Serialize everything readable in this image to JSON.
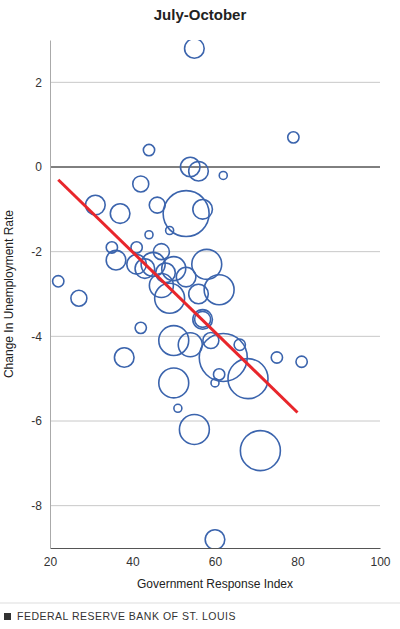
{
  "chart_data": {
    "type": "scatter",
    "title": "July-October",
    "x_label": "Government Response Index",
    "y_label": "Change In Unemployment Rate",
    "source": "FEDERAL RESERVE BANK OF ST. LOUIS",
    "xlim": [
      20,
      100
    ],
    "xticks": [
      20,
      40,
      60,
      80,
      100
    ],
    "ylim": [
      -9,
      3
    ],
    "yticks": [
      -8,
      -6,
      -4,
      -2,
      0,
      2
    ],
    "grid": true,
    "series": [
      {
        "type": "scatter",
        "marker": "circle",
        "color": "#3b64ad",
        "x": [
          22,
          27,
          31,
          35,
          36,
          37,
          38,
          41,
          41,
          42,
          42,
          43,
          44,
          44,
          45,
          46,
          47,
          47,
          48,
          49,
          49,
          50,
          50,
          50,
          51,
          53,
          53,
          54,
          54,
          55,
          55,
          56,
          56,
          57,
          57,
          57,
          58,
          59,
          60,
          60,
          61,
          61,
          62,
          62,
          66,
          68,
          71,
          75,
          79,
          81
        ],
        "values": [
          -2.7,
          -3.1,
          -0.9,
          -1.9,
          -2.2,
          -1.1,
          -4.5,
          -2.3,
          -1.9,
          -0.4,
          -3.8,
          -2.4,
          0.4,
          -1.6,
          -2.3,
          -0.9,
          -2.0,
          -2.8,
          -2.5,
          -3.1,
          -1.5,
          -2.4,
          -4.1,
          -5.1,
          -5.7,
          -2.6,
          -1.1,
          0.0,
          -4.2,
          2.8,
          -6.2,
          -0.1,
          -3.0,
          -1.0,
          -3.6,
          -3.6,
          -2.3,
          -4.1,
          -5.1,
          -8.8,
          -2.9,
          -4.9,
          -0.2,
          -4.5,
          -4.2,
          -5.0,
          -6.7,
          -4.5,
          0.7,
          -4.6
        ],
        "sizes": [
          2,
          4,
          6,
          2,
          6,
          6,
          6,
          6,
          2,
          4,
          2,
          6,
          2,
          1,
          9,
          4,
          4,
          9,
          6,
          14,
          1,
          9,
          14,
          14,
          1,
          6,
          33,
          6,
          9,
          6,
          14,
          6,
          6,
          6,
          4,
          6,
          14,
          4,
          1,
          6,
          14,
          2,
          1,
          36,
          2,
          25,
          25,
          2,
          2,
          2
        ]
      },
      {
        "type": "line",
        "line_style": "solid",
        "color": "#e8262b",
        "x": [
          22,
          80
        ],
        "values": [
          -0.3,
          -5.8
        ]
      }
    ]
  }
}
